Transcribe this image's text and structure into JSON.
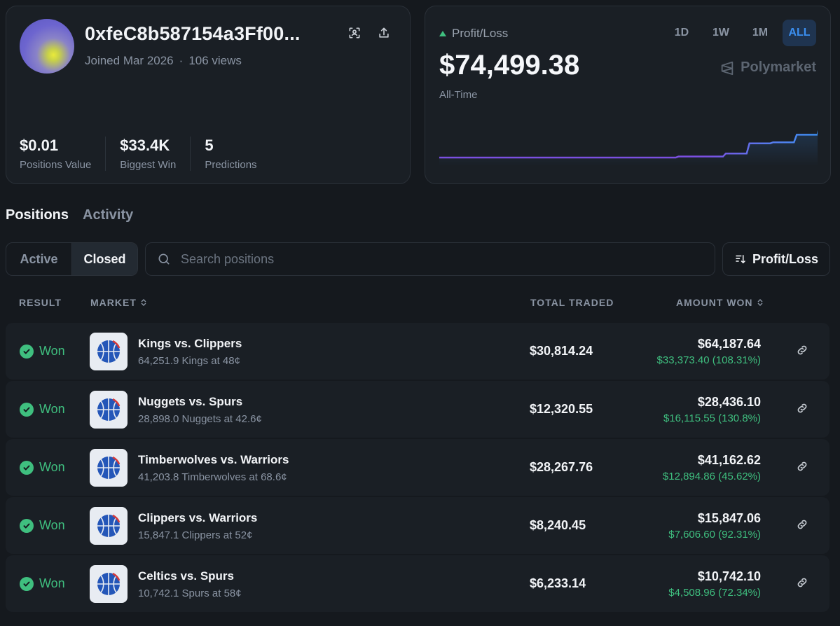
{
  "profile": {
    "username": "0xfeC8b587154a3Ff00...",
    "joined": "Joined Mar 2026",
    "views": "106 views",
    "stats": [
      {
        "value": "$0.01",
        "label": "Positions Value"
      },
      {
        "value": "$33.4K",
        "label": "Biggest Win"
      },
      {
        "value": "5",
        "label": "Predictions"
      }
    ]
  },
  "pnl": {
    "label": "Profit/Loss",
    "value": "$74,499.38",
    "period": "All-Time",
    "brand": "Polymarket",
    "ranges": [
      "1D",
      "1W",
      "1M",
      "ALL"
    ],
    "active_range": "ALL",
    "up_color": "#3fbf7f"
  },
  "chart_data": {
    "type": "area",
    "x": [
      0,
      1,
      2,
      3,
      4,
      5,
      6,
      7,
      8,
      9,
      10,
      11,
      12,
      13,
      14,
      15,
      16
    ],
    "values": [
      0,
      0,
      0,
      0,
      0,
      0,
      0,
      0,
      0,
      0,
      2000,
      2000,
      8000,
      28000,
      30000,
      45000,
      74499.38
    ],
    "line_colors": [
      "#7b4fe0",
      "#3b8ff0"
    ]
  },
  "tabs": [
    "Positions",
    "Activity"
  ],
  "active_tab": "Positions",
  "filter": {
    "options": [
      "Active",
      "Closed"
    ],
    "active": "Closed",
    "search_placeholder": "Search positions",
    "sort_label": "Profit/Loss"
  },
  "table": {
    "headers": {
      "result": "RESULT",
      "market": "MARKET",
      "traded": "TOTAL TRADED",
      "won": "AMOUNT WON"
    },
    "rows": [
      {
        "result": "Won",
        "title": "Kings vs. Clippers",
        "sub": "64,251.9 Kings at 48¢",
        "traded": "$30,814.24",
        "won": "$64,187.64",
        "profit": "$33,373.40 (108.31%)"
      },
      {
        "result": "Won",
        "title": "Nuggets vs. Spurs",
        "sub": "28,898.0 Nuggets at 42.6¢",
        "traded": "$12,320.55",
        "won": "$28,436.10",
        "profit": "$16,115.55 (130.8%)"
      },
      {
        "result": "Won",
        "title": "Timberwolves vs. Warriors",
        "sub": "41,203.8 Timberwolves at 68.6¢",
        "traded": "$28,267.76",
        "won": "$41,162.62",
        "profit": "$12,894.86 (45.62%)"
      },
      {
        "result": "Won",
        "title": "Clippers vs. Warriors",
        "sub": "15,847.1 Clippers at 52¢",
        "traded": "$8,240.45",
        "won": "$15,847.06",
        "profit": "$7,606.60 (92.31%)"
      },
      {
        "result": "Won",
        "title": "Celtics vs. Spurs",
        "sub": "10,742.1 Spurs at 58¢",
        "traded": "$6,233.14",
        "won": "$10,742.10",
        "profit": "$4,508.96 (72.34%)"
      }
    ]
  },
  "icons": {
    "qr": "scan-qr-icon",
    "share": "share-upload-icon",
    "link": "link-icon",
    "check": "check-circle-icon",
    "basketball": "basketball-icon",
    "search": "search-icon",
    "sort": "sort-descending-icon"
  }
}
